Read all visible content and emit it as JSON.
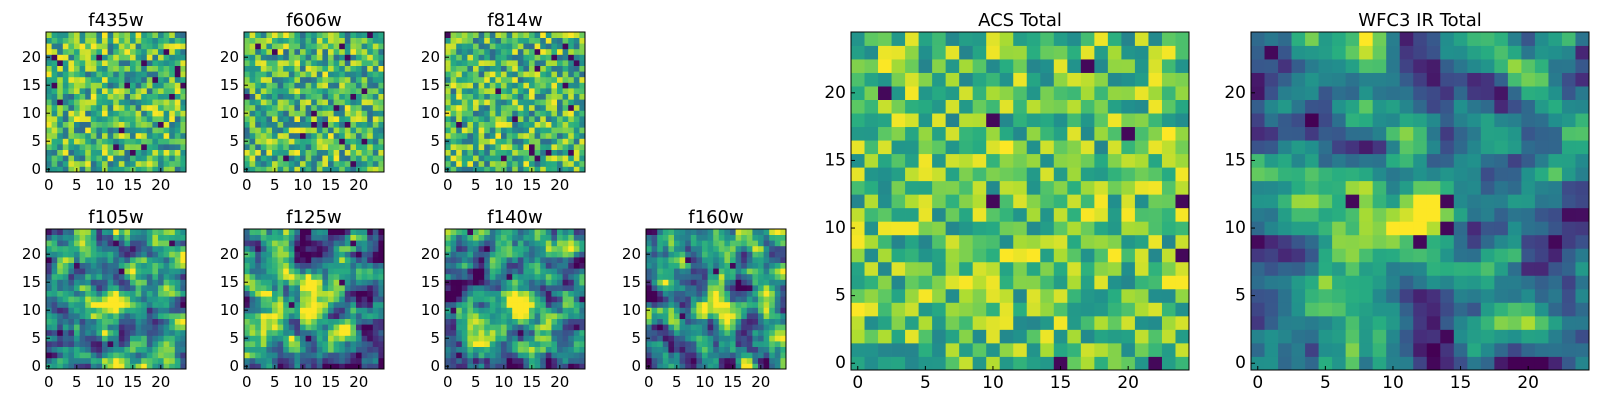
{
  "colormap": "viridis",
  "grid": false,
  "chart_data": [
    {
      "type": "heatmap",
      "title": "f435w",
      "xlim": [
        -0.5,
        24.5
      ],
      "ylim": [
        -0.5,
        24.5
      ],
      "x_ticks": [
        0,
        5,
        10,
        15,
        20
      ],
      "y_ticks": [
        0,
        5,
        10,
        15,
        20
      ],
      "size": 25,
      "pattern": "noise",
      "seed": 11
    },
    {
      "type": "heatmap",
      "title": "f606w",
      "xlim": [
        -0.5,
        24.5
      ],
      "ylim": [
        -0.5,
        24.5
      ],
      "x_ticks": [
        0,
        5,
        10,
        15,
        20
      ],
      "y_ticks": [
        0,
        5,
        10,
        15,
        20
      ],
      "size": 25,
      "pattern": "noise",
      "seed": 23
    },
    {
      "type": "heatmap",
      "title": "f814w",
      "xlim": [
        -0.5,
        24.5
      ],
      "ylim": [
        -0.5,
        24.5
      ],
      "x_ticks": [
        0,
        5,
        10,
        15,
        20
      ],
      "y_ticks": [
        0,
        5,
        10,
        15,
        20
      ],
      "size": 25,
      "pattern": "noise",
      "seed": 37
    },
    {
      "type": "heatmap",
      "title": "f105w",
      "xlim": [
        -0.5,
        24.5
      ],
      "ylim": [
        -0.5,
        24.5
      ],
      "x_ticks": [
        0,
        5,
        10,
        15,
        20
      ],
      "y_ticks": [
        0,
        5,
        10,
        15,
        20
      ],
      "size": 25,
      "pattern": "source",
      "seed": 41
    },
    {
      "type": "heatmap",
      "title": "f125w",
      "xlim": [
        -0.5,
        24.5
      ],
      "ylim": [
        -0.5,
        24.5
      ],
      "x_ticks": [
        0,
        5,
        10,
        15,
        20
      ],
      "y_ticks": [
        0,
        5,
        10,
        15,
        20
      ],
      "size": 25,
      "pattern": "source",
      "seed": 53
    },
    {
      "type": "heatmap",
      "title": "f140w",
      "xlim": [
        -0.5,
        24.5
      ],
      "ylim": [
        -0.5,
        24.5
      ],
      "x_ticks": [
        0,
        5,
        10,
        15,
        20
      ],
      "y_ticks": [
        0,
        5,
        10,
        15,
        20
      ],
      "size": 25,
      "pattern": "source",
      "seed": 67
    },
    {
      "type": "heatmap",
      "title": "f160w",
      "xlim": [
        -0.5,
        24.5
      ],
      "ylim": [
        -0.5,
        24.5
      ],
      "x_ticks": [
        0,
        5,
        10,
        15,
        20
      ],
      "y_ticks": [
        0,
        5,
        10,
        15,
        20
      ],
      "size": 25,
      "pattern": "source",
      "seed": 79
    },
    {
      "type": "heatmap",
      "title": "ACS Total",
      "xlim": [
        -0.5,
        24.5
      ],
      "ylim": [
        -0.5,
        24.5
      ],
      "x_ticks": [
        0,
        5,
        10,
        15,
        20
      ],
      "y_ticks": [
        0,
        5,
        10,
        15,
        20
      ],
      "size": 25,
      "pattern": "noise-bright",
      "seed": 97
    },
    {
      "type": "heatmap",
      "title": "WFC3 IR Total",
      "xlim": [
        -0.5,
        24.5
      ],
      "ylim": [
        -0.5,
        24.5
      ],
      "x_ticks": [
        0,
        5,
        10,
        15,
        20
      ],
      "y_ticks": [
        0,
        5,
        10,
        15,
        20
      ],
      "size": 25,
      "pattern": "source-strong",
      "seed": 101
    }
  ]
}
